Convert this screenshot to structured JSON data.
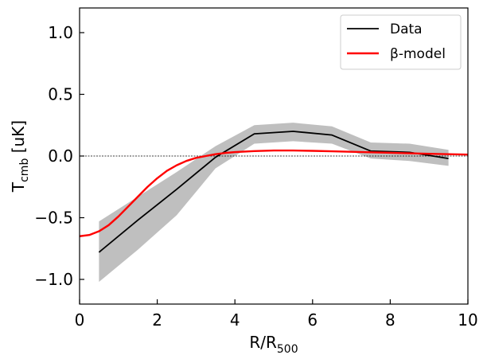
{
  "chart_data": {
    "type": "line",
    "title": "",
    "xlabel": {
      "base": "R/R",
      "sub": "500"
    },
    "ylabel": {
      "base": "T",
      "sub": "cmb",
      "unit": "[uK]"
    },
    "xlim": [
      0,
      10
    ],
    "ylim": [
      -1.2,
      1.2
    ],
    "xticks": [
      0,
      2,
      4,
      6,
      8,
      10
    ],
    "xtick_labels": [
      "0",
      "2",
      "4",
      "6",
      "8",
      "10"
    ],
    "yticks": [
      1.0,
      0.5,
      0.0,
      -0.5,
      -1.0
    ],
    "ytick_labels": [
      "1.0",
      "0.5",
      "0.0",
      "−0.5",
      "−1.0"
    ],
    "legend_position": "top-right",
    "reference_line": {
      "y": 0,
      "style": "dotted",
      "color": "#000000"
    },
    "error_band": {
      "name": "Data uncertainty",
      "color": "#bfbfbf",
      "x": [
        0.5,
        1.5,
        2.5,
        3.5,
        4.5,
        5.5,
        6.5,
        7.5,
        8.5,
        9.5
      ],
      "lower": [
        -1.02,
        -0.76,
        -0.48,
        -0.1,
        0.1,
        0.12,
        0.1,
        -0.02,
        -0.04,
        -0.08
      ],
      "upper": [
        -0.53,
        -0.33,
        -0.13,
        0.08,
        0.25,
        0.27,
        0.24,
        0.11,
        0.1,
        0.05
      ]
    },
    "series": [
      {
        "name": "Data",
        "color": "#000000",
        "x": [
          0.5,
          1.5,
          2.5,
          3.5,
          4.5,
          5.5,
          6.5,
          7.5,
          8.5,
          9.5
        ],
        "y": [
          -0.78,
          -0.52,
          -0.27,
          -0.01,
          0.18,
          0.2,
          0.17,
          0.04,
          0.03,
          -0.02
        ]
      },
      {
        "name": "β-model",
        "color": "#ff0000",
        "x": [
          0.0,
          0.25,
          0.5,
          0.75,
          1.0,
          1.25,
          1.5,
          1.75,
          2.0,
          2.25,
          2.5,
          2.75,
          3.0,
          3.25,
          3.5,
          3.75,
          4.0,
          4.5,
          5.0,
          5.5,
          6.0,
          6.5,
          7.0,
          7.5,
          8.0,
          8.5,
          9.0,
          9.5,
          10.0
        ],
        "y": [
          -0.65,
          -0.64,
          -0.61,
          -0.56,
          -0.49,
          -0.41,
          -0.33,
          -0.25,
          -0.18,
          -0.12,
          -0.075,
          -0.04,
          -0.015,
          0.0,
          0.015,
          0.025,
          0.032,
          0.04,
          0.045,
          0.045,
          0.042,
          0.038,
          0.034,
          0.03,
          0.026,
          0.022,
          0.018,
          0.015,
          0.012
        ]
      }
    ]
  }
}
